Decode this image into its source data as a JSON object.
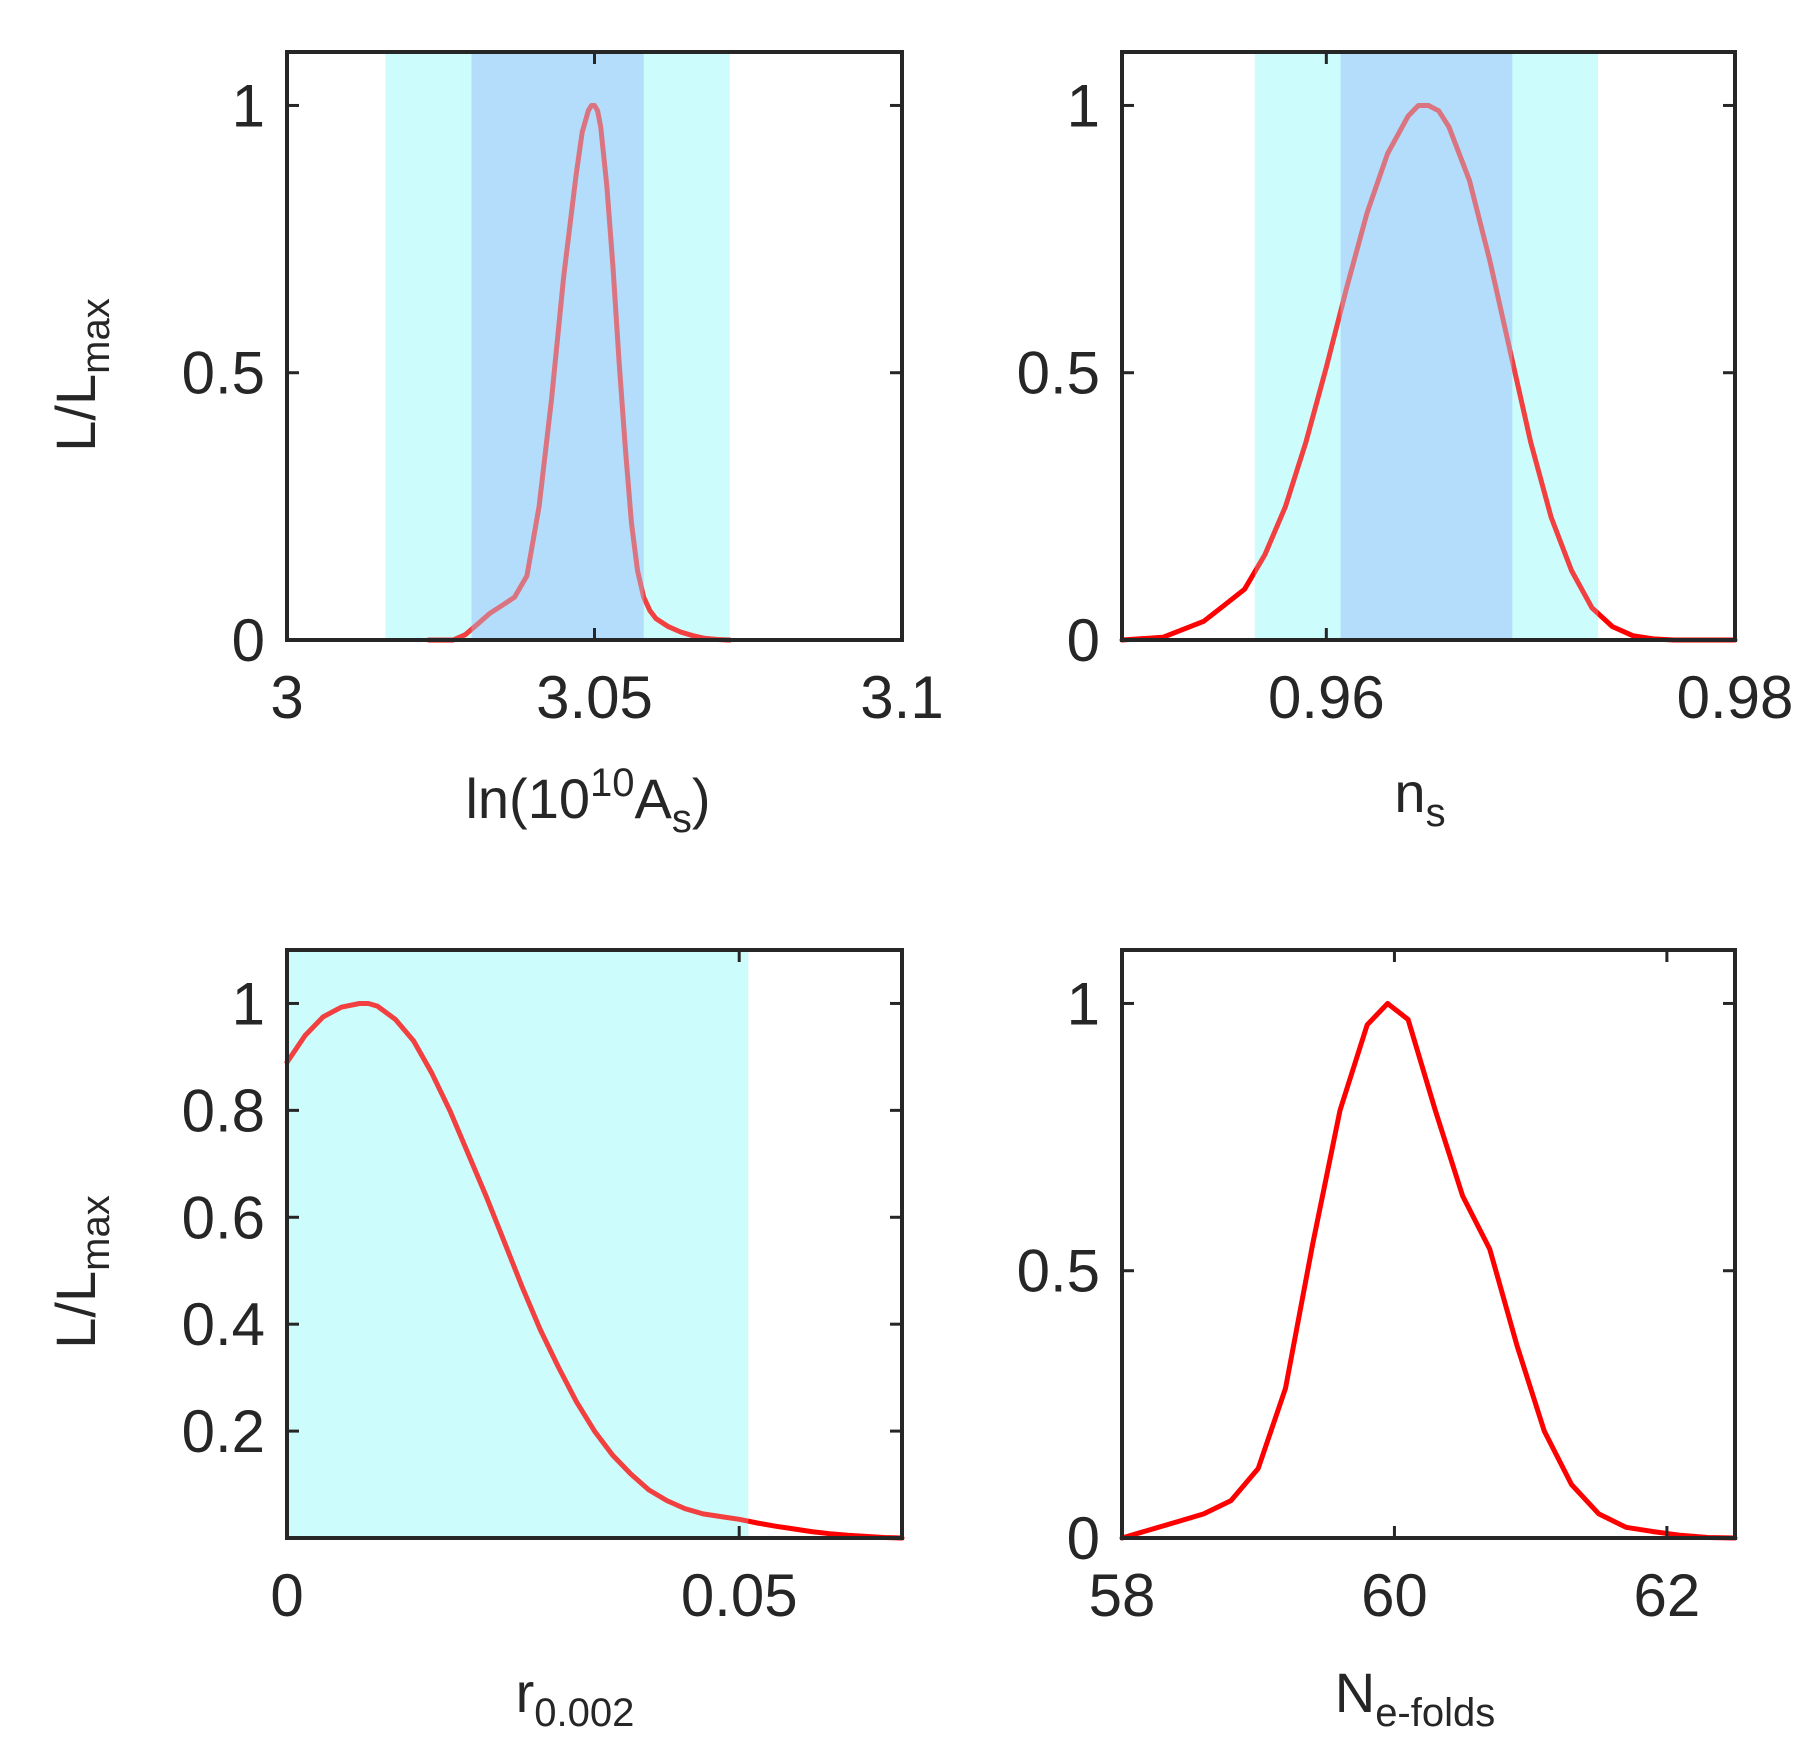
{
  "figure": {
    "colors": {
      "curve": "#ff0000",
      "band_95": "#ccfdfd",
      "band_68": "#aed8fa",
      "axis": "#262626",
      "background": "#ffffff"
    },
    "y_label": {
      "main": "L/L",
      "sub": "max"
    }
  },
  "chart_data": [
    {
      "id": "lnAs",
      "type": "line",
      "xlim": [
        3.0,
        3.1
      ],
      "ylim": [
        0,
        1.1
      ],
      "xticks": [
        3.0,
        3.05,
        3.1
      ],
      "xtick_labels": [
        "3",
        "3.05",
        "3.1"
      ],
      "yticks": [
        0,
        0.5,
        1
      ],
      "ytick_labels": [
        "0",
        "0.5",
        "1"
      ],
      "xlabel": {
        "pre": "ln(10",
        "sup": "10",
        "post": "A",
        "sub": "s",
        "close": ")"
      },
      "ylabel_shown": true,
      "band_95": [
        3.016,
        3.072
      ],
      "band_68": [
        3.03,
        3.058
      ],
      "series": [
        {
          "name": "L/Lmax",
          "x": [
            3.023,
            3.027,
            3.029,
            3.031,
            3.033,
            3.035,
            3.037,
            3.039,
            3.041,
            3.043,
            3.045,
            3.047,
            3.048,
            3.049,
            3.0495,
            3.05,
            3.0505,
            3.051,
            3.052,
            3.053,
            3.054,
            3.055,
            3.056,
            3.057,
            3.058,
            3.059,
            3.06,
            3.062,
            3.064,
            3.066,
            3.068,
            3.07,
            3.072
          ],
          "y": [
            0.0,
            0.0,
            0.01,
            0.03,
            0.05,
            0.065,
            0.08,
            0.12,
            0.25,
            0.45,
            0.68,
            0.87,
            0.95,
            0.99,
            1.0,
            1.0,
            0.99,
            0.96,
            0.85,
            0.7,
            0.52,
            0.36,
            0.22,
            0.13,
            0.08,
            0.055,
            0.04,
            0.025,
            0.015,
            0.008,
            0.003,
            0.001,
            0.0
          ]
        }
      ]
    },
    {
      "id": "ns",
      "type": "line",
      "xlim": [
        0.95,
        0.98
      ],
      "ylim": [
        0,
        1.1
      ],
      "xticks": [
        0.96,
        0.98
      ],
      "xtick_labels": [
        "0.96",
        "0.98"
      ],
      "yticks": [
        0,
        0.5,
        1
      ],
      "ytick_labels": [
        "0",
        "0.5",
        "1"
      ],
      "xlabel": {
        "main": "n",
        "sub": "s"
      },
      "ylabel_shown": false,
      "band_95": [
        0.9565,
        0.9733
      ],
      "band_68": [
        0.9607,
        0.9691
      ],
      "series": [
        {
          "name": "L/Lmax",
          "x": [
            0.95,
            0.952,
            0.954,
            0.955,
            0.956,
            0.957,
            0.958,
            0.959,
            0.96,
            0.961,
            0.962,
            0.963,
            0.964,
            0.9645,
            0.965,
            0.9655,
            0.966,
            0.967,
            0.968,
            0.969,
            0.97,
            0.971,
            0.972,
            0.973,
            0.974,
            0.975,
            0.976,
            0.977,
            0.978,
            0.979,
            0.98
          ],
          "y": [
            0.0,
            0.005,
            0.035,
            0.065,
            0.095,
            0.16,
            0.25,
            0.37,
            0.51,
            0.66,
            0.8,
            0.91,
            0.98,
            1.0,
            1.0,
            0.99,
            0.96,
            0.86,
            0.71,
            0.54,
            0.37,
            0.23,
            0.13,
            0.06,
            0.025,
            0.008,
            0.002,
            0.0,
            0.0,
            0.0,
            0.0
          ]
        }
      ]
    },
    {
      "id": "r",
      "type": "line",
      "xlim": [
        0,
        0.068
      ],
      "ylim": [
        0,
        1.1
      ],
      "xticks": [
        0,
        0.05
      ],
      "xtick_labels": [
        "0",
        "0.05"
      ],
      "yticks": [
        0.2,
        0.4,
        0.6,
        0.8,
        1
      ],
      "ytick_labels": [
        "0.2",
        "0.4",
        "0.6",
        "0.8",
        "1"
      ],
      "xlabel": {
        "main": "r",
        "sub": "0.002"
      },
      "ylabel_shown": true,
      "band_95": [
        0,
        0.051
      ],
      "band_68": null,
      "series": [
        {
          "name": "L/Lmax",
          "x": [
            0,
            0.002,
            0.004,
            0.006,
            0.008,
            0.009,
            0.01,
            0.012,
            0.014,
            0.016,
            0.018,
            0.02,
            0.022,
            0.024,
            0.026,
            0.028,
            0.03,
            0.032,
            0.034,
            0.036,
            0.038,
            0.04,
            0.042,
            0.044,
            0.046,
            0.048,
            0.05,
            0.052,
            0.054,
            0.056,
            0.058,
            0.06,
            0.062,
            0.064,
            0.066,
            0.068
          ],
          "y": [
            0.89,
            0.94,
            0.975,
            0.993,
            1.0,
            1.0,
            0.995,
            0.97,
            0.93,
            0.87,
            0.8,
            0.72,
            0.64,
            0.555,
            0.47,
            0.39,
            0.32,
            0.255,
            0.2,
            0.155,
            0.12,
            0.09,
            0.07,
            0.055,
            0.045,
            0.04,
            0.035,
            0.028,
            0.022,
            0.017,
            0.012,
            0.008,
            0.005,
            0.003,
            0.001,
            0.0
          ]
        }
      ]
    },
    {
      "id": "Nefolds",
      "type": "line",
      "xlim": [
        58,
        62.5
      ],
      "ylim": [
        0,
        1.1
      ],
      "xticks": [
        58,
        60,
        62
      ],
      "xtick_labels": [
        "58",
        "60",
        "62"
      ],
      "yticks": [
        0,
        0.5,
        1
      ],
      "ytick_labels": [
        "0",
        "0.5",
        "1"
      ],
      "xlabel": {
        "main": "N",
        "sub": "e-folds"
      },
      "ylabel_shown": false,
      "band_95": null,
      "band_68": null,
      "series": [
        {
          "name": "L/Lmax",
          "x": [
            58.0,
            58.2,
            58.4,
            58.6,
            58.8,
            59.0,
            59.2,
            59.4,
            59.6,
            59.8,
            59.95,
            60.1,
            60.3,
            60.5,
            60.7,
            60.9,
            61.1,
            61.3,
            61.5,
            61.7,
            61.9,
            62.1,
            62.3,
            62.5
          ],
          "y": [
            0.0,
            0.015,
            0.03,
            0.045,
            0.07,
            0.13,
            0.28,
            0.55,
            0.8,
            0.96,
            1.0,
            0.97,
            0.8,
            0.64,
            0.54,
            0.36,
            0.2,
            0.1,
            0.045,
            0.02,
            0.012,
            0.005,
            0.001,
            0.0
          ]
        }
      ]
    }
  ]
}
